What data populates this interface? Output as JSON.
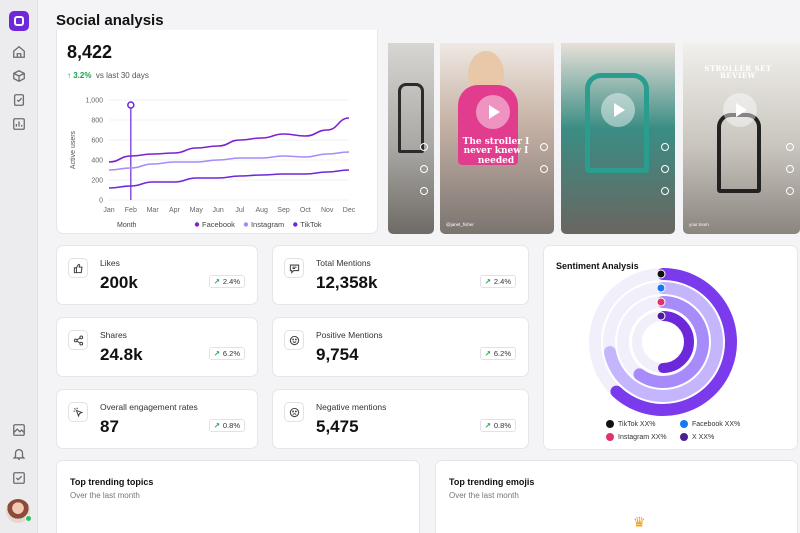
{
  "page": {
    "title": "Social analysis"
  },
  "sidebar": {
    "items": [
      {
        "name": "home",
        "icon": "home-icon"
      },
      {
        "name": "packages",
        "icon": "box-icon"
      },
      {
        "name": "reports",
        "icon": "clipboard-icon"
      },
      {
        "name": "analytics",
        "icon": "bar-chart-icon"
      },
      {
        "name": "media",
        "icon": "image-icon"
      },
      {
        "name": "notifications",
        "icon": "bell-icon"
      },
      {
        "name": "tasks",
        "icon": "checkbox-icon"
      }
    ]
  },
  "active_users": {
    "value": "8,422",
    "delta": "3.2%",
    "delta_text": "vs last 30 days"
  },
  "chart_data": {
    "type": "line",
    "ylabel": "Active users",
    "xlabel": "Month",
    "ylim": [
      0,
      1000
    ],
    "yticks": [
      "1,000",
      "800",
      "600",
      "400",
      "200",
      "0"
    ],
    "categories": [
      "Jan",
      "Feb",
      "Mar",
      "Apr",
      "May",
      "Jun",
      "Jul",
      "Aug",
      "Sep",
      "Oct",
      "Nov",
      "Dec"
    ],
    "series": [
      {
        "name": "Facebook",
        "color": "#7e22ce",
        "values": [
          380,
          440,
          460,
          470,
          520,
          540,
          600,
          620,
          660,
          640,
          700,
          820
        ]
      },
      {
        "name": "Instagram",
        "color": "#a78bfa",
        "values": [
          300,
          320,
          360,
          380,
          380,
          400,
          420,
          420,
          440,
          430,
          460,
          480
        ]
      },
      {
        "name": "TikTok",
        "color": "#6d28d9",
        "values": [
          120,
          140,
          180,
          180,
          220,
          220,
          240,
          250,
          260,
          260,
          280,
          300
        ]
      }
    ],
    "annotation": {
      "category": "Feb",
      "value": 950
    }
  },
  "videos": [
    {
      "overlay": ""
    },
    {
      "overlay": "The stroller I never knew I needed",
      "caption": "@janet_fisher"
    },
    {
      "overlay": ""
    },
    {
      "overlay": "STROLLER SET REVIEW",
      "caption": "your.mom"
    }
  ],
  "stats": [
    {
      "label": "Likes",
      "value": "200k",
      "delta": "2.4%",
      "icon": "thumbs-up-icon"
    },
    {
      "label": "Total Mentions",
      "value": "12,358k",
      "delta": "2.4%",
      "icon": "message-icon"
    },
    {
      "label": "Shares",
      "value": "24.8k",
      "delta": "6.2%",
      "icon": "share-icon"
    },
    {
      "label": "Positive Mentions",
      "value": "9,754",
      "delta": "6.2%",
      "icon": "smile-icon"
    },
    {
      "label": "Overall engagement rates",
      "value": "87",
      "delta": "0.8%",
      "icon": "pointer-icon"
    },
    {
      "label": "Negative mentions",
      "value": "5,475",
      "delta": "0.8%",
      "icon": "frown-icon"
    }
  ],
  "sentiment": {
    "title": "Sentiment Analysis",
    "legend": [
      {
        "label": "TikTok XX%",
        "color": "#111111",
        "icon": "tiktok-icon"
      },
      {
        "label": "Facebook XX%",
        "color": "#1877f2",
        "icon": "facebook-icon"
      },
      {
        "label": "Instagram XX%",
        "color": "#e1306c",
        "icon": "instagram-icon"
      },
      {
        "label": "X XX%",
        "color": "#4c1d95",
        "icon": "x-icon"
      }
    ],
    "rings": [
      {
        "fraction": 0.5,
        "color": "#6d28d9"
      },
      {
        "fraction": 0.6,
        "color": "#a78bfa"
      },
      {
        "fraction": 0.72,
        "color": "#c4b5fd"
      },
      {
        "fraction": 0.62,
        "color": "#7c3aed"
      }
    ]
  },
  "trending": {
    "topics": {
      "title": "Top trending topics",
      "subtitle": "Over the last month"
    },
    "emojis": {
      "title": "Top trending emojis",
      "subtitle": "Over the last month"
    }
  }
}
